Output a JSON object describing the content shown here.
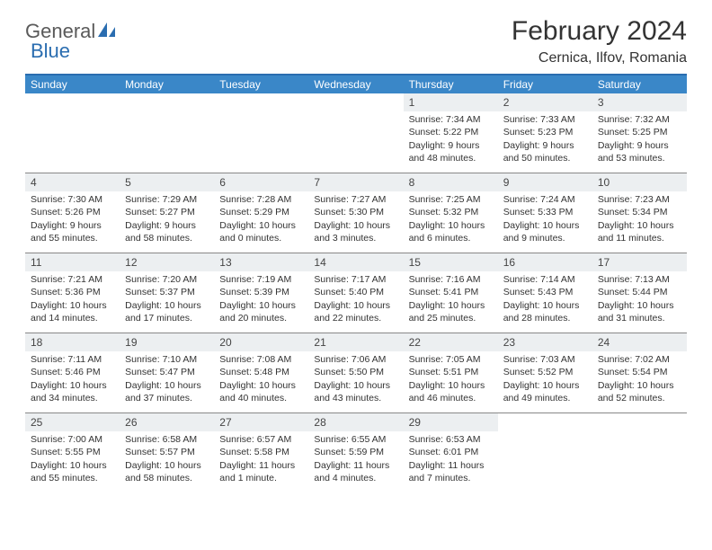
{
  "brand": {
    "text1": "General",
    "text2": "Blue",
    "text1_color": "#5a5a5a",
    "text2_color": "#2a6db0",
    "icon_fill": "#2a6db0"
  },
  "title": "February 2024",
  "location": "Cernica, Ilfov, Romania",
  "colors": {
    "header_bg": "#3a87c8",
    "header_text": "#ffffff",
    "daynum_bg": "#eceff1",
    "border_top": "#2a6db0",
    "row_border": "#888888",
    "body_text": "#333333"
  },
  "day_names": [
    "Sunday",
    "Monday",
    "Tuesday",
    "Wednesday",
    "Thursday",
    "Friday",
    "Saturday"
  ],
  "weeks": [
    [
      {
        "num": "",
        "sunrise": "",
        "sunset": "",
        "daylight1": "",
        "daylight2": ""
      },
      {
        "num": "",
        "sunrise": "",
        "sunset": "",
        "daylight1": "",
        "daylight2": ""
      },
      {
        "num": "",
        "sunrise": "",
        "sunset": "",
        "daylight1": "",
        "daylight2": ""
      },
      {
        "num": "",
        "sunrise": "",
        "sunset": "",
        "daylight1": "",
        "daylight2": ""
      },
      {
        "num": "1",
        "sunrise": "Sunrise: 7:34 AM",
        "sunset": "Sunset: 5:22 PM",
        "daylight1": "Daylight: 9 hours",
        "daylight2": "and 48 minutes."
      },
      {
        "num": "2",
        "sunrise": "Sunrise: 7:33 AM",
        "sunset": "Sunset: 5:23 PM",
        "daylight1": "Daylight: 9 hours",
        "daylight2": "and 50 minutes."
      },
      {
        "num": "3",
        "sunrise": "Sunrise: 7:32 AM",
        "sunset": "Sunset: 5:25 PM",
        "daylight1": "Daylight: 9 hours",
        "daylight2": "and 53 minutes."
      }
    ],
    [
      {
        "num": "4",
        "sunrise": "Sunrise: 7:30 AM",
        "sunset": "Sunset: 5:26 PM",
        "daylight1": "Daylight: 9 hours",
        "daylight2": "and 55 minutes."
      },
      {
        "num": "5",
        "sunrise": "Sunrise: 7:29 AM",
        "sunset": "Sunset: 5:27 PM",
        "daylight1": "Daylight: 9 hours",
        "daylight2": "and 58 minutes."
      },
      {
        "num": "6",
        "sunrise": "Sunrise: 7:28 AM",
        "sunset": "Sunset: 5:29 PM",
        "daylight1": "Daylight: 10 hours",
        "daylight2": "and 0 minutes."
      },
      {
        "num": "7",
        "sunrise": "Sunrise: 7:27 AM",
        "sunset": "Sunset: 5:30 PM",
        "daylight1": "Daylight: 10 hours",
        "daylight2": "and 3 minutes."
      },
      {
        "num": "8",
        "sunrise": "Sunrise: 7:25 AM",
        "sunset": "Sunset: 5:32 PM",
        "daylight1": "Daylight: 10 hours",
        "daylight2": "and 6 minutes."
      },
      {
        "num": "9",
        "sunrise": "Sunrise: 7:24 AM",
        "sunset": "Sunset: 5:33 PM",
        "daylight1": "Daylight: 10 hours",
        "daylight2": "and 9 minutes."
      },
      {
        "num": "10",
        "sunrise": "Sunrise: 7:23 AM",
        "sunset": "Sunset: 5:34 PM",
        "daylight1": "Daylight: 10 hours",
        "daylight2": "and 11 minutes."
      }
    ],
    [
      {
        "num": "11",
        "sunrise": "Sunrise: 7:21 AM",
        "sunset": "Sunset: 5:36 PM",
        "daylight1": "Daylight: 10 hours",
        "daylight2": "and 14 minutes."
      },
      {
        "num": "12",
        "sunrise": "Sunrise: 7:20 AM",
        "sunset": "Sunset: 5:37 PM",
        "daylight1": "Daylight: 10 hours",
        "daylight2": "and 17 minutes."
      },
      {
        "num": "13",
        "sunrise": "Sunrise: 7:19 AM",
        "sunset": "Sunset: 5:39 PM",
        "daylight1": "Daylight: 10 hours",
        "daylight2": "and 20 minutes."
      },
      {
        "num": "14",
        "sunrise": "Sunrise: 7:17 AM",
        "sunset": "Sunset: 5:40 PM",
        "daylight1": "Daylight: 10 hours",
        "daylight2": "and 22 minutes."
      },
      {
        "num": "15",
        "sunrise": "Sunrise: 7:16 AM",
        "sunset": "Sunset: 5:41 PM",
        "daylight1": "Daylight: 10 hours",
        "daylight2": "and 25 minutes."
      },
      {
        "num": "16",
        "sunrise": "Sunrise: 7:14 AM",
        "sunset": "Sunset: 5:43 PM",
        "daylight1": "Daylight: 10 hours",
        "daylight2": "and 28 minutes."
      },
      {
        "num": "17",
        "sunrise": "Sunrise: 7:13 AM",
        "sunset": "Sunset: 5:44 PM",
        "daylight1": "Daylight: 10 hours",
        "daylight2": "and 31 minutes."
      }
    ],
    [
      {
        "num": "18",
        "sunrise": "Sunrise: 7:11 AM",
        "sunset": "Sunset: 5:46 PM",
        "daylight1": "Daylight: 10 hours",
        "daylight2": "and 34 minutes."
      },
      {
        "num": "19",
        "sunrise": "Sunrise: 7:10 AM",
        "sunset": "Sunset: 5:47 PM",
        "daylight1": "Daylight: 10 hours",
        "daylight2": "and 37 minutes."
      },
      {
        "num": "20",
        "sunrise": "Sunrise: 7:08 AM",
        "sunset": "Sunset: 5:48 PM",
        "daylight1": "Daylight: 10 hours",
        "daylight2": "and 40 minutes."
      },
      {
        "num": "21",
        "sunrise": "Sunrise: 7:06 AM",
        "sunset": "Sunset: 5:50 PM",
        "daylight1": "Daylight: 10 hours",
        "daylight2": "and 43 minutes."
      },
      {
        "num": "22",
        "sunrise": "Sunrise: 7:05 AM",
        "sunset": "Sunset: 5:51 PM",
        "daylight1": "Daylight: 10 hours",
        "daylight2": "and 46 minutes."
      },
      {
        "num": "23",
        "sunrise": "Sunrise: 7:03 AM",
        "sunset": "Sunset: 5:52 PM",
        "daylight1": "Daylight: 10 hours",
        "daylight2": "and 49 minutes."
      },
      {
        "num": "24",
        "sunrise": "Sunrise: 7:02 AM",
        "sunset": "Sunset: 5:54 PM",
        "daylight1": "Daylight: 10 hours",
        "daylight2": "and 52 minutes."
      }
    ],
    [
      {
        "num": "25",
        "sunrise": "Sunrise: 7:00 AM",
        "sunset": "Sunset: 5:55 PM",
        "daylight1": "Daylight: 10 hours",
        "daylight2": "and 55 minutes."
      },
      {
        "num": "26",
        "sunrise": "Sunrise: 6:58 AM",
        "sunset": "Sunset: 5:57 PM",
        "daylight1": "Daylight: 10 hours",
        "daylight2": "and 58 minutes."
      },
      {
        "num": "27",
        "sunrise": "Sunrise: 6:57 AM",
        "sunset": "Sunset: 5:58 PM",
        "daylight1": "Daylight: 11 hours",
        "daylight2": "and 1 minute."
      },
      {
        "num": "28",
        "sunrise": "Sunrise: 6:55 AM",
        "sunset": "Sunset: 5:59 PM",
        "daylight1": "Daylight: 11 hours",
        "daylight2": "and 4 minutes."
      },
      {
        "num": "29",
        "sunrise": "Sunrise: 6:53 AM",
        "sunset": "Sunset: 6:01 PM",
        "daylight1": "Daylight: 11 hours",
        "daylight2": "and 7 minutes."
      },
      {
        "num": "",
        "sunrise": "",
        "sunset": "",
        "daylight1": "",
        "daylight2": ""
      },
      {
        "num": "",
        "sunrise": "",
        "sunset": "",
        "daylight1": "",
        "daylight2": ""
      }
    ]
  ]
}
